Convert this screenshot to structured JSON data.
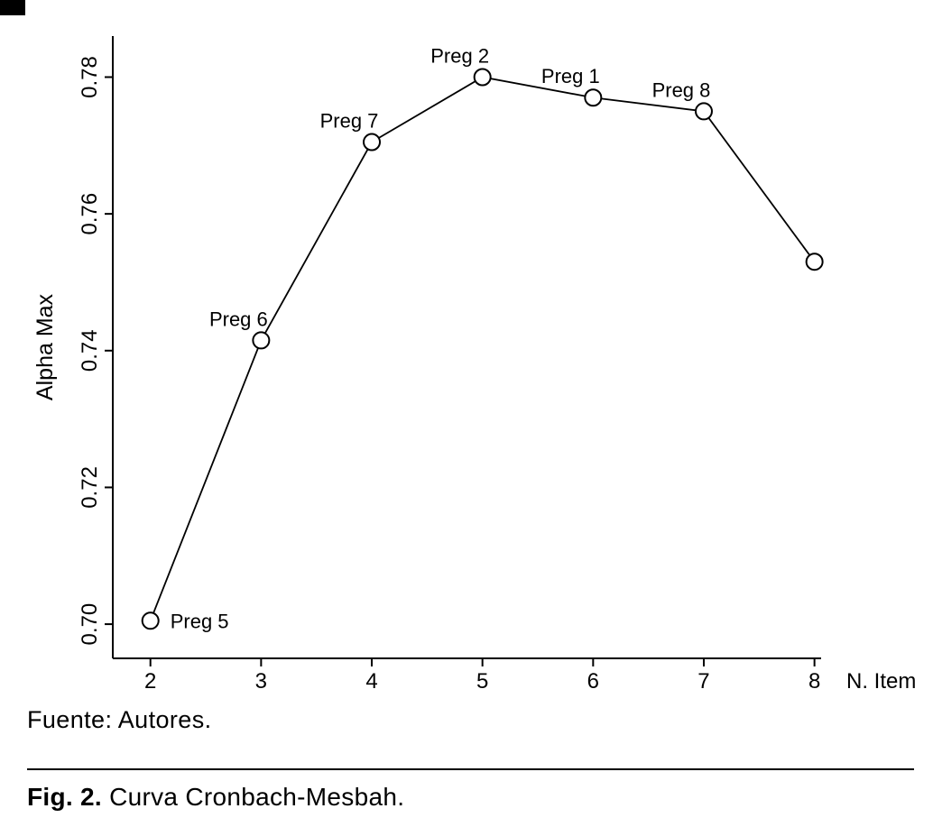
{
  "figure": {
    "source_note": "Fuente: Autores.",
    "caption_label": "Fig. 2.",
    "caption_text": "Curva Cronbach-Mesbah."
  },
  "chart_data": {
    "type": "line",
    "title": "",
    "xlabel": "N. Item",
    "ylabel": "Alpha Max",
    "x": [
      2,
      3,
      4,
      5,
      6,
      7,
      8
    ],
    "series": [
      {
        "name": "Alpha Max",
        "values": [
          0.7005,
          0.7415,
          0.7705,
          0.78,
          0.777,
          0.775,
          0.753
        ]
      }
    ],
    "point_labels": [
      "Preg 5",
      "Preg 6",
      "Preg 7",
      "Preg 2",
      "Preg 1",
      "Preg 8",
      ""
    ],
    "point_label_positions": [
      "right",
      "above",
      "above",
      "above",
      "above",
      "above",
      "none"
    ],
    "xticks": [
      "2",
      "3",
      "4",
      "5",
      "6",
      "7",
      "8"
    ],
    "ytick_values": [
      0.7,
      0.72,
      0.74,
      0.76,
      0.78
    ],
    "ytick_labels": [
      "0.70",
      "0.72",
      "0.74",
      "0.76",
      "0.78"
    ],
    "xlim": [
      1.66,
      8.06
    ],
    "ylim": [
      0.695,
      0.786
    ],
    "grid": false,
    "legend": "none",
    "marker": "open-circle",
    "color": "#000000"
  }
}
